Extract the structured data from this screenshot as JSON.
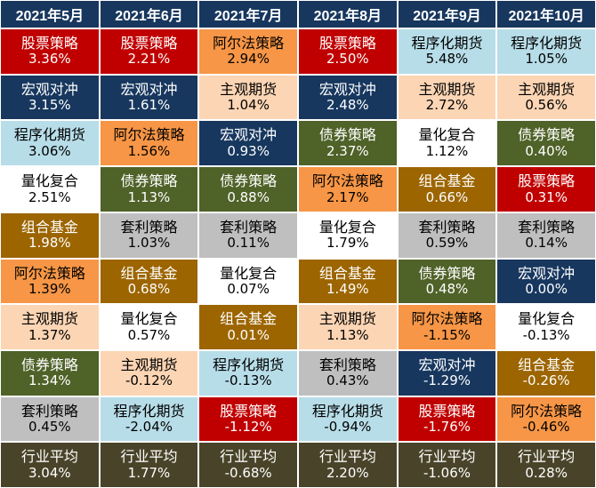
{
  "months": [
    "2021年5月",
    "2021年6月",
    "2021年7月",
    "2021年8月",
    "2021年9月",
    "2021年10月"
  ],
  "strategy_colors": {
    "股票策略": {
      "bg": "#c00000",
      "fg": "#ffffff"
    },
    "宏观对冲": {
      "bg": "#17375e",
      "fg": "#ffffff"
    },
    "程序化期货": {
      "bg": "#b7dde8",
      "fg": "#000000"
    },
    "量化复合": {
      "bg": "#ffffff",
      "fg": "#000000"
    },
    "组合基金": {
      "bg": "#9c6500",
      "fg": "#ffffff"
    },
    "阿尔法策略": {
      "bg": "#f79646",
      "fg": "#000000"
    },
    "主观期货": {
      "bg": "#fcd5b4",
      "fg": "#000000"
    },
    "债券策略": {
      "bg": "#4f6228",
      "fg": "#ffffff"
    },
    "套利策略": {
      "bg": "#bfbfbf",
      "fg": "#000000"
    },
    "行业平均": {
      "bg": "#494429",
      "fg": "#ffffff"
    }
  },
  "columns": [
    [
      {
        "name": "股票策略",
        "value": "3.36%"
      },
      {
        "name": "宏观对冲",
        "value": "3.15%"
      },
      {
        "name": "程序化期货",
        "value": "3.06%"
      },
      {
        "name": "量化复合",
        "value": "2.51%"
      },
      {
        "name": "组合基金",
        "value": "1.98%"
      },
      {
        "name": "阿尔法策略",
        "value": "1.39%"
      },
      {
        "name": "主观期货",
        "value": "1.37%"
      },
      {
        "name": "债券策略",
        "value": "1.34%"
      },
      {
        "name": "套利策略",
        "value": "0.45%"
      },
      {
        "name": "行业平均",
        "value": "3.04%"
      }
    ],
    [
      {
        "name": "股票策略",
        "value": "2.21%"
      },
      {
        "name": "宏观对冲",
        "value": "1.61%"
      },
      {
        "name": "阿尔法策略",
        "value": "1.56%"
      },
      {
        "name": "债券策略",
        "value": "1.13%"
      },
      {
        "name": "套利策略",
        "value": "1.03%"
      },
      {
        "name": "组合基金",
        "value": "0.68%"
      },
      {
        "name": "量化复合",
        "value": "0.57%"
      },
      {
        "name": "主观期货",
        "value": "-0.12%"
      },
      {
        "name": "程序化期货",
        "value": "-2.04%"
      },
      {
        "name": "行业平均",
        "value": "1.77%"
      }
    ],
    [
      {
        "name": "阿尔法策略",
        "value": "2.94%"
      },
      {
        "name": "主观期货",
        "value": "1.04%"
      },
      {
        "name": "宏观对冲",
        "value": "0.93%"
      },
      {
        "name": "债券策略",
        "value": "0.88%"
      },
      {
        "name": "套利策略",
        "value": "0.11%"
      },
      {
        "name": "量化复合",
        "value": "0.07%"
      },
      {
        "name": "组合基金",
        "value": "0.01%"
      },
      {
        "name": "程序化期货",
        "value": "-0.13%"
      },
      {
        "name": "股票策略",
        "value": "-1.12%"
      },
      {
        "name": "行业平均",
        "value": "-0.68%"
      }
    ],
    [
      {
        "name": "股票策略",
        "value": "2.50%"
      },
      {
        "name": "宏观对冲",
        "value": "2.48%"
      },
      {
        "name": "债券策略",
        "value": "2.37%"
      },
      {
        "name": "阿尔法策略",
        "value": "2.17%"
      },
      {
        "name": "量化复合",
        "value": "1.79%"
      },
      {
        "name": "组合基金",
        "value": "1.49%"
      },
      {
        "name": "主观期货",
        "value": "1.13%"
      },
      {
        "name": "套利策略",
        "value": "0.43%"
      },
      {
        "name": "程序化期货",
        "value": "-0.94%"
      },
      {
        "name": "行业平均",
        "value": "2.20%"
      }
    ],
    [
      {
        "name": "程序化期货",
        "value": "5.48%"
      },
      {
        "name": "主观期货",
        "value": "2.72%"
      },
      {
        "name": "量化复合",
        "value": "1.12%"
      },
      {
        "name": "组合基金",
        "value": "0.66%"
      },
      {
        "name": "套利策略",
        "value": "0.59%"
      },
      {
        "name": "债券策略",
        "value": "0.48%"
      },
      {
        "name": "阿尔法策略",
        "value": "-1.15%"
      },
      {
        "name": "宏观对冲",
        "value": "-1.29%"
      },
      {
        "name": "股票策略",
        "value": "-1.76%"
      },
      {
        "name": "行业平均",
        "value": "-1.06%"
      }
    ],
    [
      {
        "name": "程序化期货",
        "value": "1.05%"
      },
      {
        "name": "主观期货",
        "value": "0.56%"
      },
      {
        "name": "债券策略",
        "value": "0.40%"
      },
      {
        "name": "股票策略",
        "value": "0.31%"
      },
      {
        "name": "套利策略",
        "value": "0.14%"
      },
      {
        "name": "宏观对冲",
        "value": "0.00%"
      },
      {
        "name": "量化复合",
        "value": "-0.13%"
      },
      {
        "name": "组合基金",
        "value": "-0.26%"
      },
      {
        "name": "阿尔法策略",
        "value": "-0.46%"
      },
      {
        "name": "行业平均",
        "value": "0.28%"
      }
    ]
  ]
}
